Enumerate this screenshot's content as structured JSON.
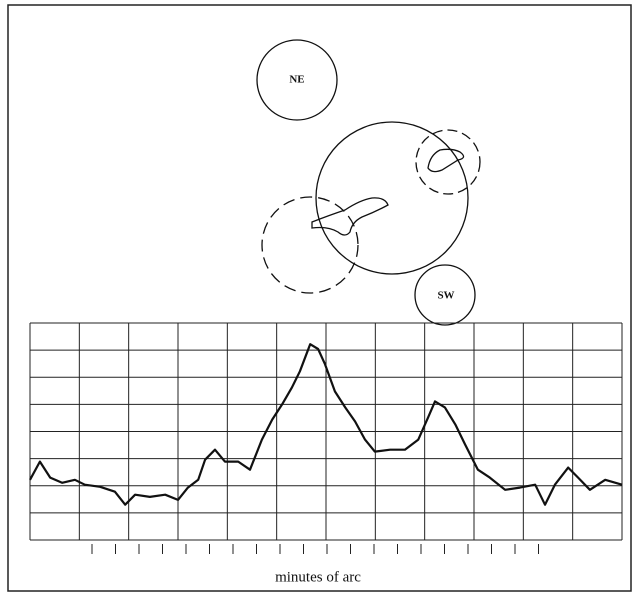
{
  "chart_data": {
    "type": "line",
    "annotations": [
      "NE",
      "SW"
    ],
    "x_label": "minutes of arc",
    "x": [
      0,
      0.2,
      0.41,
      0.65,
      0.91,
      1.11,
      1.42,
      1.72,
      1.93,
      2.13,
      2.43,
      2.74,
      3.0,
      3.2,
      3.41,
      3.55,
      3.75,
      3.95,
      4.22,
      4.46,
      4.7,
      4.91,
      5.11,
      5.31,
      5.47,
      5.68,
      5.84,
      5.98,
      6.18,
      6.39,
      6.59,
      6.79,
      6.99,
      7.3,
      7.6,
      7.87,
      8.07,
      8.21,
      8.41,
      8.62,
      8.82,
      9.08,
      9.32,
      9.63,
      9.93,
      10.24,
      10.44,
      10.64,
      10.91,
      11.11,
      11.35,
      11.66,
      12.0
    ],
    "series": [
      {
        "color": "#111111",
        "values": [
          2.22,
          2.89,
          2.3,
          2.11,
          2.22,
          2.04,
          1.96,
          1.78,
          1.3,
          1.67,
          1.59,
          1.67,
          1.48,
          1.93,
          2.22,
          2.96,
          3.33,
          2.89,
          2.89,
          2.59,
          3.7,
          4.44,
          5.0,
          5.63,
          6.22,
          7.22,
          7.04,
          6.48,
          5.48,
          4.89,
          4.37,
          3.7,
          3.26,
          3.33,
          3.33,
          3.7,
          4.52,
          5.11,
          4.89,
          4.26,
          3.52,
          2.59,
          2.3,
          1.85,
          1.93,
          2.04,
          1.3,
          2.04,
          2.67,
          2.3,
          1.85,
          2.22,
          2.04
        ]
      }
    ],
    "xlim": [
      0,
      12
    ],
    "ylim": [
      0,
      8
    ]
  }
}
